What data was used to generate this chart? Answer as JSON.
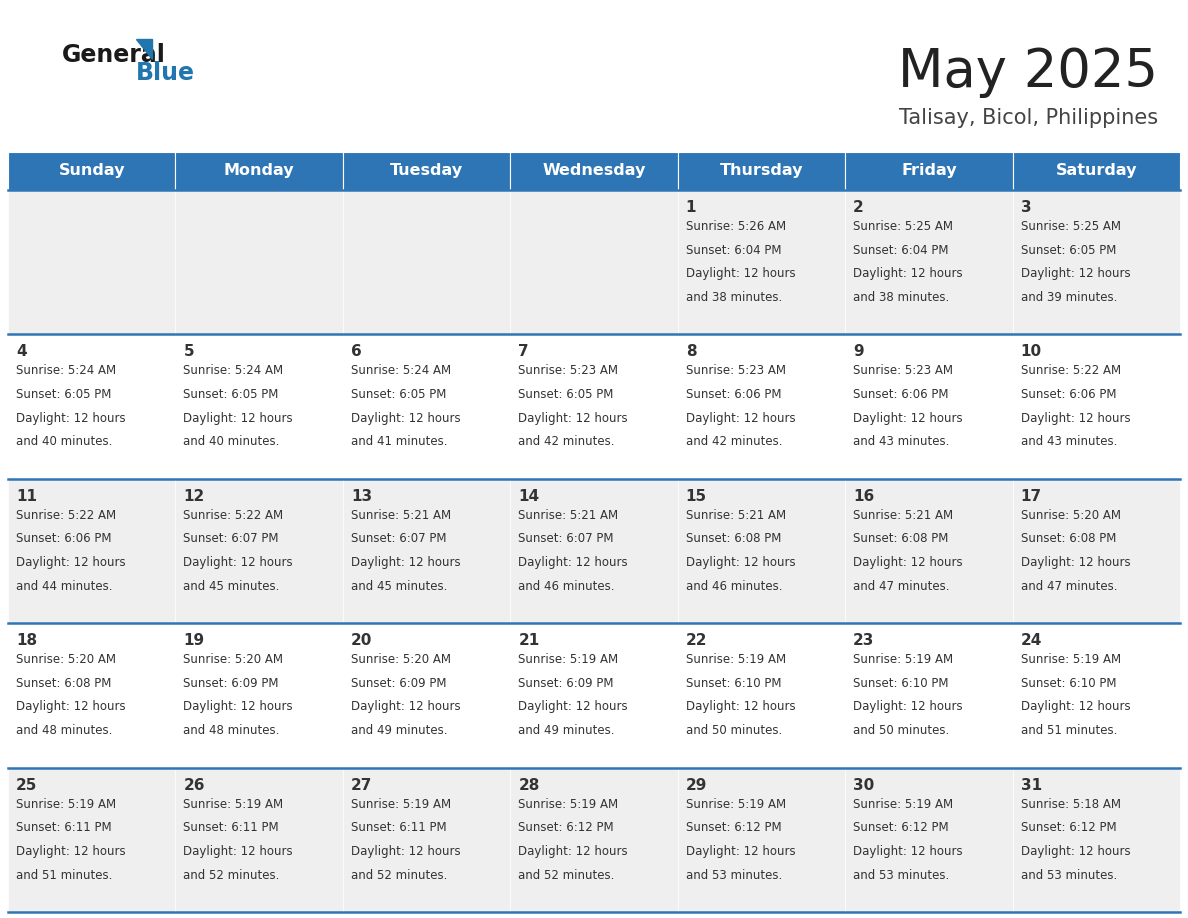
{
  "title": "May 2025",
  "subtitle": "Talisay, Bicol, Philippines",
  "header_bg": "#2E75B6",
  "header_text_color": "#FFFFFF",
  "cell_bg_odd": "#EFEFEF",
  "cell_bg_even": "#FFFFFF",
  "day_headers": [
    "Sunday",
    "Monday",
    "Tuesday",
    "Wednesday",
    "Thursday",
    "Friday",
    "Saturday"
  ],
  "title_color": "#222222",
  "subtitle_color": "#444444",
  "day_num_color": "#333333",
  "cell_text_color": "#333333",
  "separator_color": "#2E75B6",
  "logo_general_color": "#1a1a1a",
  "logo_blue_color": "#2176AE",
  "logo_triangle_color": "#2176AE",
  "calendar": [
    [
      {
        "day": "",
        "sunrise": "",
        "sunset": "",
        "daylight": ""
      },
      {
        "day": "",
        "sunrise": "",
        "sunset": "",
        "daylight": ""
      },
      {
        "day": "",
        "sunrise": "",
        "sunset": "",
        "daylight": ""
      },
      {
        "day": "",
        "sunrise": "",
        "sunset": "",
        "daylight": ""
      },
      {
        "day": "1",
        "sunrise": "5:26 AM",
        "sunset": "6:04 PM",
        "daylight": "12 hours and 38 minutes."
      },
      {
        "day": "2",
        "sunrise": "5:25 AM",
        "sunset": "6:04 PM",
        "daylight": "12 hours and 38 minutes."
      },
      {
        "day": "3",
        "sunrise": "5:25 AM",
        "sunset": "6:05 PM",
        "daylight": "12 hours and 39 minutes."
      }
    ],
    [
      {
        "day": "4",
        "sunrise": "5:24 AM",
        "sunset": "6:05 PM",
        "daylight": "12 hours and 40 minutes."
      },
      {
        "day": "5",
        "sunrise": "5:24 AM",
        "sunset": "6:05 PM",
        "daylight": "12 hours and 40 minutes."
      },
      {
        "day": "6",
        "sunrise": "5:24 AM",
        "sunset": "6:05 PM",
        "daylight": "12 hours and 41 minutes."
      },
      {
        "day": "7",
        "sunrise": "5:23 AM",
        "sunset": "6:05 PM",
        "daylight": "12 hours and 42 minutes."
      },
      {
        "day": "8",
        "sunrise": "5:23 AM",
        "sunset": "6:06 PM",
        "daylight": "12 hours and 42 minutes."
      },
      {
        "day": "9",
        "sunrise": "5:23 AM",
        "sunset": "6:06 PM",
        "daylight": "12 hours and 43 minutes."
      },
      {
        "day": "10",
        "sunrise": "5:22 AM",
        "sunset": "6:06 PM",
        "daylight": "12 hours and 43 minutes."
      }
    ],
    [
      {
        "day": "11",
        "sunrise": "5:22 AM",
        "sunset": "6:06 PM",
        "daylight": "12 hours and 44 minutes."
      },
      {
        "day": "12",
        "sunrise": "5:22 AM",
        "sunset": "6:07 PM",
        "daylight": "12 hours and 45 minutes."
      },
      {
        "day": "13",
        "sunrise": "5:21 AM",
        "sunset": "6:07 PM",
        "daylight": "12 hours and 45 minutes."
      },
      {
        "day": "14",
        "sunrise": "5:21 AM",
        "sunset": "6:07 PM",
        "daylight": "12 hours and 46 minutes."
      },
      {
        "day": "15",
        "sunrise": "5:21 AM",
        "sunset": "6:08 PM",
        "daylight": "12 hours and 46 minutes."
      },
      {
        "day": "16",
        "sunrise": "5:21 AM",
        "sunset": "6:08 PM",
        "daylight": "12 hours and 47 minutes."
      },
      {
        "day": "17",
        "sunrise": "5:20 AM",
        "sunset": "6:08 PM",
        "daylight": "12 hours and 47 minutes."
      }
    ],
    [
      {
        "day": "18",
        "sunrise": "5:20 AM",
        "sunset": "6:08 PM",
        "daylight": "12 hours and 48 minutes."
      },
      {
        "day": "19",
        "sunrise": "5:20 AM",
        "sunset": "6:09 PM",
        "daylight": "12 hours and 48 minutes."
      },
      {
        "day": "20",
        "sunrise": "5:20 AM",
        "sunset": "6:09 PM",
        "daylight": "12 hours and 49 minutes."
      },
      {
        "day": "21",
        "sunrise": "5:19 AM",
        "sunset": "6:09 PM",
        "daylight": "12 hours and 49 minutes."
      },
      {
        "day": "22",
        "sunrise": "5:19 AM",
        "sunset": "6:10 PM",
        "daylight": "12 hours and 50 minutes."
      },
      {
        "day": "23",
        "sunrise": "5:19 AM",
        "sunset": "6:10 PM",
        "daylight": "12 hours and 50 minutes."
      },
      {
        "day": "24",
        "sunrise": "5:19 AM",
        "sunset": "6:10 PM",
        "daylight": "12 hours and 51 minutes."
      }
    ],
    [
      {
        "day": "25",
        "sunrise": "5:19 AM",
        "sunset": "6:11 PM",
        "daylight": "12 hours and 51 minutes."
      },
      {
        "day": "26",
        "sunrise": "5:19 AM",
        "sunset": "6:11 PM",
        "daylight": "12 hours and 52 minutes."
      },
      {
        "day": "27",
        "sunrise": "5:19 AM",
        "sunset": "6:11 PM",
        "daylight": "12 hours and 52 minutes."
      },
      {
        "day": "28",
        "sunrise": "5:19 AM",
        "sunset": "6:12 PM",
        "daylight": "12 hours and 52 minutes."
      },
      {
        "day": "29",
        "sunrise": "5:19 AM",
        "sunset": "6:12 PM",
        "daylight": "12 hours and 53 minutes."
      },
      {
        "day": "30",
        "sunrise": "5:19 AM",
        "sunset": "6:12 PM",
        "daylight": "12 hours and 53 minutes."
      },
      {
        "day": "31",
        "sunrise": "5:18 AM",
        "sunset": "6:12 PM",
        "daylight": "12 hours and 53 minutes."
      }
    ]
  ]
}
